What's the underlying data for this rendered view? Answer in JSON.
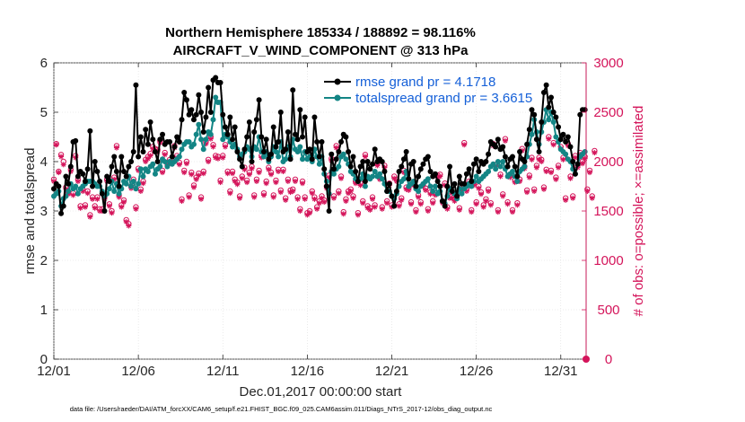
{
  "chart_data": {
    "type": "line",
    "title": "Northern Hemisphere 185334 / 188892 = 98.116%",
    "subtitle": "AIRCRAFT_V_WIND_COMPONENT @ 313 hPa",
    "xlabel": "Dec.01,2017 00:00:00 start",
    "ylabel_left": "rmse and totalspread",
    "ylabel_right": "# of obs: o=possible; ×=assimilated",
    "x_ticks": [
      "12/01",
      "12/06",
      "12/11",
      "12/16",
      "12/21",
      "12/26",
      "12/31"
    ],
    "y_left_ticks": [
      "0",
      "1",
      "2",
      "3",
      "4",
      "5",
      "6"
    ],
    "y_right_ticks": [
      "0",
      "500",
      "1000",
      "1500",
      "2000",
      "2500",
      "3000"
    ],
    "xlim": [
      0,
      31.5
    ],
    "ylim_left": [
      0,
      6
    ],
    "ylim_right": [
      0,
      3000
    ],
    "legend": [
      {
        "label": "rmse grand pr = 4.1718",
        "color": "#000000"
      },
      {
        "label": "totalspread grand pr = 3.6615",
        "color": "#138585"
      }
    ],
    "series": [
      {
        "name": "rmse",
        "color": "#000000",
        "values": [
          3.45,
          3.55,
          3.5,
          2.95,
          3.1,
          3.7,
          3.55,
          3.9,
          4.4,
          4.42,
          3.7,
          3.8,
          3.75,
          3.6,
          3.85,
          4.62,
          3.5,
          4.0,
          3.8,
          3.6,
          3.35,
          3.0,
          3.7,
          3.6,
          3.9,
          4.1,
          3.8,
          3.5,
          4.1,
          3.8,
          3.7,
          3.9,
          4.0,
          4.2,
          5.55,
          4.1,
          4.5,
          4.2,
          4.65,
          4.35,
          4.8,
          4.45,
          4.2,
          4.0,
          4.45,
          4.55,
          4.35,
          4.4,
          4.4,
          4.1,
          4.3,
          4.5,
          4.4,
          4.85,
          5.4,
          5.25,
          4.95,
          5.05,
          4.85,
          4.95,
          5.35,
          5.0,
          4.6,
          4.9,
          5.5,
          5.0,
          5.65,
          5.7,
          5.6,
          5.6,
          4.95,
          4.7,
          4.55,
          4.9,
          4.45,
          4.7,
          4.2,
          4.05,
          3.9,
          4.25,
          4.5,
          4.8,
          4.0,
          4.6,
          4.85,
          5.25,
          4.5,
          4.2,
          4.45,
          4.05,
          4.15,
          4.7,
          4.3,
          4.4,
          5.0,
          4.2,
          4.25,
          4.6,
          4.05,
          5.45,
          4.55,
          4.45,
          5.05,
          4.5,
          4.9,
          4.2,
          4.25,
          4.05,
          4.9,
          4.4,
          4.1,
          4.4,
          3.85,
          3.5,
          3.0,
          4.15,
          3.85,
          4.05,
          4.2,
          4.4,
          4.55,
          4.5,
          4.2,
          3.9,
          4.1,
          3.8,
          3.6,
          3.9,
          4.0,
          3.6,
          4.0,
          3.85,
          3.95,
          4.25,
          4.0,
          4.05,
          4.0,
          3.8,
          3.4,
          3.55,
          3.3,
          3.1,
          3.4,
          3.8,
          3.9,
          4.05,
          4.2,
          3.65,
          3.95,
          4.0,
          3.5,
          3.7,
          3.85,
          3.95,
          4.05,
          4.1,
          3.8,
          3.7,
          3.75,
          3.6,
          3.5,
          3.2,
          3.1,
          3.5,
          3.9,
          3.4,
          3.55,
          3.3,
          3.7,
          3.55,
          3.55,
          3.75,
          3.85,
          3.6,
          3.95,
          4.05,
          3.8,
          4.0,
          3.95,
          4.0,
          4.15,
          4.4,
          4.35,
          4.3,
          4.45,
          4.25,
          4.3,
          4.1,
          3.9,
          4.05,
          4.1,
          3.9,
          3.7,
          4.2,
          4.05,
          4.0,
          4.35,
          4.65,
          5.05,
          4.95,
          4.45,
          4.2,
          4.8,
          5.4,
          5.55,
          5.1,
          5.3,
          5.0,
          4.9,
          4.7,
          4.45,
          4.55,
          4.4,
          4.5,
          4.3,
          4.0,
          3.75,
          3.95,
          4.95,
          5.05,
          5.05
        ]
      },
      {
        "name": "totalspread",
        "color": "#138585",
        "values": [
          3.3,
          3.35,
          3.4,
          3.1,
          3.25,
          3.3,
          3.4,
          3.55,
          3.45,
          3.5,
          3.35,
          3.45,
          3.5,
          3.55,
          3.6,
          3.6,
          3.6,
          3.55,
          3.5,
          3.5,
          3.4,
          3.3,
          3.35,
          3.45,
          3.6,
          3.4,
          3.55,
          3.35,
          3.45,
          3.6,
          3.55,
          3.7,
          3.5,
          3.6,
          3.45,
          3.55,
          3.85,
          3.7,
          3.85,
          3.8,
          3.9,
          3.95,
          3.75,
          3.85,
          3.9,
          4.05,
          4.0,
          3.9,
          4.0,
          3.95,
          4.0,
          4.05,
          4.1,
          4.25,
          4.35,
          4.4,
          4.4,
          4.3,
          4.35,
          4.55,
          4.75,
          4.45,
          4.25,
          4.45,
          4.6,
          4.55,
          4.85,
          5.3,
          5.2,
          5.2,
          4.45,
          4.55,
          4.5,
          4.4,
          4.3,
          4.35,
          4.25,
          4.1,
          4.15,
          4.2,
          4.3,
          4.25,
          4.1,
          4.3,
          4.25,
          4.5,
          4.2,
          4.1,
          4.2,
          4.0,
          4.1,
          4.3,
          4.2,
          4.1,
          4.4,
          4.0,
          4.05,
          4.3,
          4.1,
          4.45,
          4.25,
          4.2,
          4.3,
          4.05,
          4.2,
          4.05,
          4.1,
          4.0,
          4.25,
          4.1,
          3.95,
          4.1,
          3.75,
          3.6,
          3.35,
          3.8,
          3.75,
          3.85,
          3.9,
          4.1,
          4.15,
          4.05,
          3.95,
          3.8,
          3.75,
          3.65,
          3.6,
          3.65,
          3.75,
          3.5,
          3.7,
          3.65,
          3.7,
          3.8,
          3.7,
          3.75,
          3.65,
          3.55,
          3.4,
          3.4,
          3.3,
          3.25,
          3.35,
          3.5,
          3.6,
          3.65,
          3.8,
          3.5,
          3.55,
          3.6,
          3.45,
          3.4,
          3.5,
          3.55,
          3.6,
          3.65,
          3.5,
          3.4,
          3.5,
          3.35,
          3.4,
          3.2,
          3.15,
          3.3,
          3.45,
          3.4,
          3.35,
          3.25,
          3.45,
          3.35,
          3.45,
          3.5,
          3.55,
          3.5,
          3.6,
          3.7,
          3.6,
          3.65,
          3.7,
          3.75,
          3.8,
          3.9,
          3.95,
          3.85,
          4.0,
          3.9,
          4.0,
          3.85,
          3.7,
          3.75,
          3.8,
          3.7,
          3.6,
          3.8,
          3.85,
          3.9,
          4.1,
          4.35,
          4.55,
          4.85,
          4.6,
          4.35,
          4.6,
          4.8,
          5.05,
          4.85,
          5.0,
          4.8,
          4.5,
          4.4,
          4.25,
          4.2,
          4.15,
          4.05,
          4.0,
          3.85,
          3.75,
          3.95,
          4.1,
          4.15,
          4.2
        ]
      },
      {
        "name": "obs_possible",
        "color": "#d4145a",
        "axis": "right",
        "values": [
          1820,
          2180,
          1900,
          2070,
          2000,
          1740,
          1690,
          1920,
          1680,
          2060,
          1820,
          1550,
          1720,
          1560,
          1700,
          1460,
          1640,
          1550,
          1640,
          1520,
          1520,
          1640,
          1820,
          1570,
          1500,
          1840,
          2160,
          1660,
          1560,
          1610,
          1410,
          1370,
          1750,
          1820,
          1540,
          1930,
          1720,
          1800,
          2020,
          2050,
          2080,
          2150,
          2130,
          2120,
          2210,
          1910,
          2090,
          1980,
          2020,
          2010,
          2160,
          2060,
          1990,
          1620,
          1910,
          2000,
          1660,
          1890,
          1760,
          1840,
          1880,
          1640,
          1900,
          2200,
          2020,
          2250,
          2170,
          2060,
          2050,
          1810,
          2060,
          2170,
          1900,
          1700,
          1900,
          1820,
          1790,
          1650,
          1850,
          1940,
          1810,
          1890,
          1950,
          1660,
          1820,
          1910,
          2060,
          1680,
          1800,
          1940,
          1890,
          1660,
          1810,
          1920,
          1710,
          1920,
          1630,
          1820,
          1710,
          1720,
          1820,
          1640,
          1520,
          1800,
          1640,
          1480,
          1500,
          1700,
          1640,
          1540,
          1600,
          1650,
          1610,
          1750,
          1860,
          2030,
          1650,
          2160,
          1700,
          1850,
          1490,
          1620,
          1700,
          1720,
          1650,
          1800,
          1480,
          1780,
          1600,
          2070,
          1550,
          1530,
          1640,
          1560,
          1980,
          1840,
          1540,
          1960,
          1600,
          1780,
          1560,
          1850,
          1820,
          1570,
          1630,
          1910,
          1740,
          1730,
          1590,
          1780,
          1510,
          1660,
          1590,
          1770,
          1730,
          1520,
          1690,
          1600,
          1680,
          1860,
          1870,
          1600,
          1780,
          1540,
          1650,
          1650,
          1620,
          1650,
          1530,
          1740,
          2190,
          1720,
          1800,
          1510,
          1780,
          1590,
          1750,
          1690,
          1560,
          1620,
          1720,
          1580,
          2180,
          1970,
          1510,
          1870,
          1670,
          2230,
          1590,
          1860,
          1510,
          1810,
          1580,
          1820,
          2130,
          1950,
          1710,
          1860,
          2040,
          1720,
          1960,
          2040,
          2020,
          1740,
          1920,
          2250,
          1910,
          2190,
          1840,
          1960,
          2150,
          2040,
          1630,
          2180,
          1850,
          1650,
          2060,
          1960,
          2090,
          2000,
          2050,
          1720,
          1910,
          1650,
          2110
        ]
      },
      {
        "name": "obs_assimilated",
        "color": "#d4145a",
        "axis": "right",
        "values": [
          1800,
          2170,
          1890,
          2050,
          1970,
          1720,
          1670,
          1900,
          1660,
          2040,
          1800,
          1530,
          1700,
          1540,
          1680,
          1440,
          1620,
          1530,
          1620,
          1500,
          1500,
          1620,
          1800,
          1550,
          1480,
          1820,
          2140,
          1640,
          1540,
          1590,
          1390,
          1350,
          1730,
          1800,
          1520,
          1910,
          1700,
          1780,
          2000,
          2030,
          2060,
          2130,
          2110,
          2100,
          2190,
          1890,
          2070,
          1960,
          2000,
          1990,
          2140,
          2040,
          1970,
          1600,
          1890,
          1980,
          1640,
          1870,
          1740,
          1820,
          1860,
          1620,
          1880,
          2180,
          2000,
          2230,
          2150,
          2040,
          2030,
          1790,
          2040,
          2150,
          1880,
          1680,
          1880,
          1800,
          1770,
          1630,
          1830,
          1920,
          1790,
          1870,
          1930,
          1640,
          1800,
          1890,
          2040,
          1660,
          1780,
          1920,
          1870,
          1640,
          1790,
          1900,
          1690,
          1900,
          1610,
          1800,
          1690,
          1700,
          1800,
          1620,
          1500,
          1780,
          1620,
          1460,
          1480,
          1680,
          1620,
          1520,
          1580,
          1630,
          1590,
          1730,
          1840,
          2010,
          1630,
          2140,
          1680,
          1830,
          1470,
          1600,
          1680,
          1700,
          1630,
          1780,
          1460,
          1760,
          1580,
          2050,
          1530,
          1510,
          1620,
          1540,
          1960,
          1820,
          1520,
          1940,
          1580,
          1760,
          1540,
          1830,
          1800,
          1550,
          1610,
          1890,
          1720,
          1710,
          1570,
          1760,
          1490,
          1640,
          1570,
          1750,
          1710,
          1500,
          1670,
          1580,
          1660,
          1840,
          1850,
          1580,
          1760,
          1520,
          1630,
          1630,
          1600,
          1630,
          1510,
          1720,
          2170,
          1700,
          1780,
          1490,
          1760,
          1570,
          1730,
          1670,
          1540,
          1600,
          1700,
          1560,
          2160,
          1950,
          1490,
          1850,
          1650,
          2210,
          1570,
          1840,
          1490,
          1790,
          1560,
          1800,
          2110,
          1930,
          1690,
          1840,
          2020,
          1700,
          1940,
          2020,
          2000,
          1720,
          1900,
          2230,
          1890,
          2170,
          1820,
          1940,
          2130,
          2020,
          1610,
          2160,
          1830,
          1630,
          2040,
          1940,
          2070,
          1980,
          2030,
          1700,
          1890,
          1630,
          2090
        ]
      }
    ]
  },
  "footer": "data file: /Users/raeder/DAI/ATM_forcXX/CAM6_setup/f.e21.FHIST_BGC.f09_025.CAM6assim.011/Diags_NTrS_2017-12/obs_diag_output.nc"
}
